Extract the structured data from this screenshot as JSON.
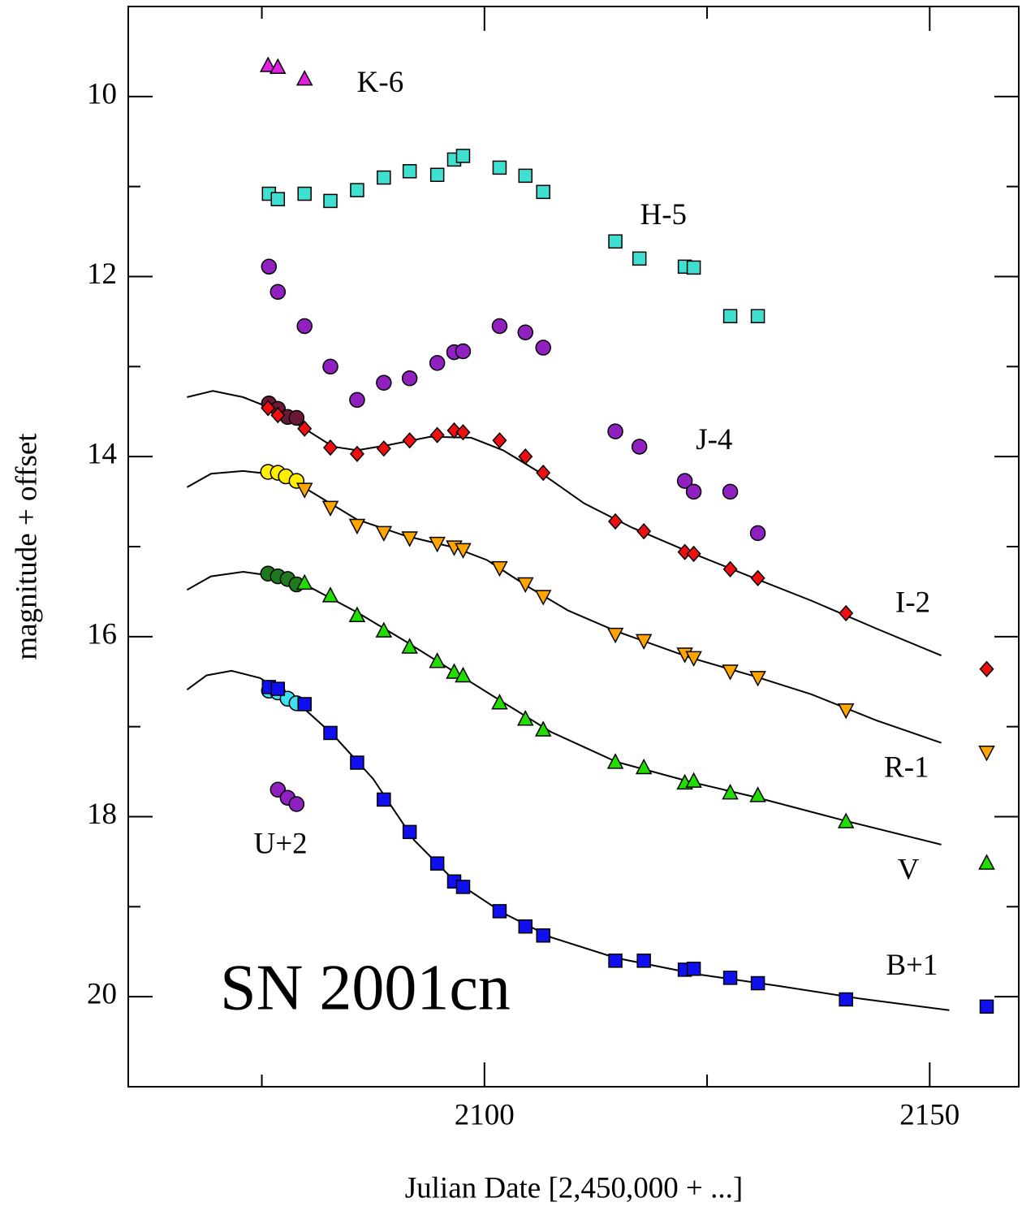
{
  "chart_data": {
    "type": "scatter",
    "title": "SN 2001cn",
    "x_label": "Julian Date [2,450,000 + ...]",
    "y_label": "magnitude + offset",
    "xlim": [
      2060,
      2160
    ],
    "ylim": [
      9,
      21
    ],
    "y_inverted": true,
    "xticks": [
      2100,
      2150
    ],
    "x_minor_ticks": [
      2075,
      2125
    ],
    "yticks": [
      10,
      12,
      14,
      16,
      18,
      20
    ],
    "y_minor_ticks": [
      11,
      13,
      15,
      17,
      19
    ],
    "series": [
      {
        "name": "K-6",
        "label_at": [
          2088.3,
          9.87
        ],
        "marker": "triangle-up",
        "color": "#e020e0",
        "x": [
          2075.7,
          2076.8,
          2079.8
        ],
        "values": [
          9.65,
          9.67,
          9.8
        ]
      },
      {
        "name": "H-5",
        "label_at": [
          2120.1,
          11.34
        ],
        "marker": "square",
        "color": "#40e0d0",
        "x": [
          2075.8,
          2076.8,
          2079.8,
          2082.7,
          2085.7,
          2088.7,
          2091.6,
          2094.7,
          2096.6,
          2097.6,
          2101.7,
          2104.6,
          2106.6,
          2114.7,
          2117.4,
          2122.5,
          2123.5,
          2127.6,
          2130.7
        ],
        "values": [
          11.08,
          11.14,
          11.08,
          11.16,
          11.04,
          10.9,
          10.83,
          10.87,
          10.7,
          10.66,
          10.79,
          10.88,
          11.06,
          11.61,
          11.8,
          11.89,
          11.9,
          12.44,
          12.44
        ]
      },
      {
        "name": "J-4",
        "label_at": [
          2125.8,
          13.84
        ],
        "marker": "circle",
        "color": "#9020c0",
        "x": [
          2075.8,
          2076.8,
          2079.8,
          2082.7,
          2085.7,
          2088.7,
          2091.6,
          2094.7,
          2096.6,
          2097.6,
          2101.7,
          2104.6,
          2106.6,
          2114.7,
          2117.4,
          2122.5,
          2123.5,
          2127.6,
          2130.7
        ],
        "values": [
          11.89,
          12.17,
          12.55,
          13.0,
          13.37,
          13.18,
          13.13,
          12.96,
          12.84,
          12.83,
          12.55,
          12.62,
          12.79,
          13.72,
          13.89,
          14.27,
          14.39,
          14.39,
          14.85
        ]
      },
      {
        "marker": "circle",
        "color": "#6a1838",
        "x": [
          2075.8,
          2076.8,
          2077.9,
          2078.9
        ],
        "values": [
          13.41,
          13.47,
          13.56,
          13.57
        ]
      },
      {
        "name": "I-2",
        "label_at": [
          2148.1,
          15.65
        ],
        "marker": "diamond",
        "color": "#ee1010",
        "x": [
          2075.7,
          2076.8,
          2079.8,
          2082.7,
          2085.7,
          2088.7,
          2091.6,
          2094.7,
          2096.6,
          2097.6,
          2101.7,
          2104.6,
          2106.6,
          2114.7,
          2117.9,
          2122.5,
          2123.5,
          2127.6,
          2130.7,
          2140.6,
          2156.4
        ],
        "values": [
          13.46,
          13.54,
          13.69,
          13.9,
          13.97,
          13.91,
          13.82,
          13.76,
          13.71,
          13.73,
          13.82,
          14.0,
          14.18,
          14.72,
          14.83,
          15.06,
          15.08,
          15.25,
          15.35,
          15.74,
          16.36
        ]
      },
      {
        "marker": "circle",
        "color": "#ffee00",
        "x": [
          2075.7,
          2076.8,
          2077.7,
          2078.9
        ],
        "values": [
          14.17,
          14.18,
          14.22,
          14.27
        ]
      },
      {
        "name": "R-1",
        "label_at": [
          2147.4,
          17.48
        ],
        "marker": "triangle-down",
        "color": "#ffa500",
        "x": [
          2079.8,
          2082.7,
          2085.7,
          2088.7,
          2091.6,
          2094.7,
          2096.6,
          2097.6,
          2101.7,
          2104.6,
          2106.6,
          2114.7,
          2117.9,
          2122.5,
          2123.5,
          2127.6,
          2130.7,
          2140.6,
          2156.4
        ],
        "values": [
          14.37,
          14.57,
          14.77,
          14.85,
          14.91,
          14.97,
          15.01,
          15.04,
          15.24,
          15.42,
          15.56,
          15.98,
          16.05,
          16.2,
          16.24,
          16.39,
          16.46,
          16.82,
          17.29
        ]
      },
      {
        "marker": "circle",
        "color": "#1f7a1f",
        "x": [
          2075.7,
          2076.8,
          2077.9,
          2078.9
        ],
        "values": [
          15.3,
          15.33,
          15.36,
          15.42
        ]
      },
      {
        "name": "V",
        "label_at": [
          2147.6,
          18.62
        ],
        "marker": "triangle-up",
        "color": "#22dd00",
        "x": [
          2079.8,
          2082.7,
          2085.7,
          2088.7,
          2091.6,
          2094.7,
          2096.6,
          2097.6,
          2101.7,
          2104.6,
          2106.6,
          2114.7,
          2117.9,
          2122.5,
          2123.5,
          2127.6,
          2130.7,
          2140.6,
          2156.4
        ],
        "values": [
          15.4,
          15.54,
          15.76,
          15.93,
          16.11,
          16.27,
          16.39,
          16.43,
          16.73,
          16.91,
          17.03,
          17.39,
          17.45,
          17.62,
          17.6,
          17.73,
          17.76,
          18.05,
          18.51
        ]
      },
      {
        "marker": "circle",
        "color": "#40e0f0",
        "x": [
          2075.8,
          2076.8,
          2077.9,
          2078.9
        ],
        "values": [
          16.6,
          16.62,
          16.69,
          16.74
        ]
      },
      {
        "name": "B+1",
        "label_at": [
          2148.0,
          19.68
        ],
        "marker": "square",
        "color": "#1010ee",
        "x": [
          2075.8,
          2076.8,
          2079.8,
          2082.7,
          2085.7,
          2088.7,
          2091.6,
          2094.7,
          2096.6,
          2097.6,
          2101.7,
          2104.6,
          2106.6,
          2114.7,
          2117.9,
          2122.5,
          2123.5,
          2127.6,
          2130.7,
          2140.6,
          2156.4
        ],
        "values": [
          16.56,
          16.58,
          16.75,
          17.07,
          17.4,
          17.81,
          18.17,
          18.52,
          18.72,
          18.78,
          19.05,
          19.22,
          19.32,
          19.6,
          19.6,
          19.7,
          19.69,
          19.79,
          19.85,
          20.03,
          20.11
        ]
      },
      {
        "name": "U+2",
        "label_at": [
          2077.1,
          18.33
        ],
        "marker": "circle",
        "color": "#9020c0",
        "x": [
          2076.8,
          2077.9,
          2078.9
        ],
        "values": [
          17.7,
          17.79,
          17.86
        ]
      },
      {
        "type": "line",
        "color": "#000000",
        "x": [
          2066.6,
          2069.5,
          2072.9,
          2075.7,
          2079.8,
          2083.0,
          2085.7,
          2089.3,
          2093.9,
          2098.5,
          2102.1,
          2106.6,
          2111.2,
          2116.6,
          2123.0,
          2130.3,
          2136.7,
          2144.0,
          2151.3
        ],
        "values": [
          13.34,
          13.27,
          13.34,
          13.45,
          13.69,
          13.89,
          13.93,
          13.87,
          13.78,
          13.79,
          13.93,
          14.2,
          14.52,
          14.79,
          15.06,
          15.35,
          15.6,
          15.91,
          16.21
        ]
      },
      {
        "type": "line",
        "color": "#000000",
        "x": [
          2066.6,
          2069.3,
          2072.9,
          2076.6,
          2080.2,
          2085.7,
          2091.1,
          2096.6,
          2100.3,
          2104.8,
          2109.4,
          2114.8,
          2123.0,
          2130.3,
          2136.7,
          2144.0,
          2151.3
        ],
        "values": [
          14.34,
          14.19,
          14.16,
          14.2,
          14.37,
          14.7,
          14.88,
          15.01,
          15.15,
          15.44,
          15.71,
          15.94,
          16.23,
          16.44,
          16.64,
          16.93,
          17.18
        ]
      },
      {
        "type": "line",
        "color": "#000000",
        "x": [
          2066.6,
          2069.3,
          2072.9,
          2076.6,
          2080.2,
          2085.7,
          2091.1,
          2096.6,
          2102.1,
          2107.5,
          2114.8,
          2123.0,
          2130.3,
          2140.3,
          2151.3
        ],
        "values": [
          15.48,
          15.33,
          15.28,
          15.33,
          15.44,
          15.73,
          16.05,
          16.39,
          16.73,
          17.06,
          17.39,
          17.61,
          17.78,
          18.04,
          18.31
        ]
      },
      {
        "type": "line",
        "color": "#000000",
        "x": [
          2066.6,
          2068.8,
          2071.6,
          2074.8,
          2078.4,
          2083.0,
          2087.5,
          2092.1,
          2096.6,
          2102.1,
          2107.5,
          2114.8,
          2123.9,
          2133.0,
          2142.1,
          2152.2
        ],
        "values": [
          16.59,
          16.43,
          16.38,
          16.46,
          16.68,
          17.09,
          17.58,
          18.26,
          18.71,
          19.07,
          19.34,
          19.57,
          19.75,
          19.88,
          20.02,
          20.15
        ]
      }
    ]
  }
}
